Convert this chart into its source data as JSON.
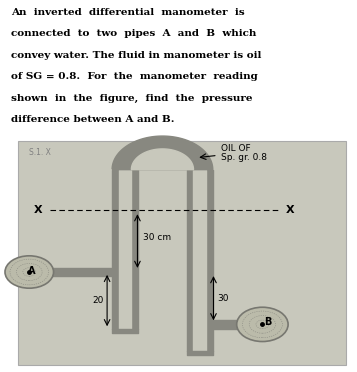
{
  "text_lines": [
    "An  inverted  differential  manometer  is",
    "connected  to  two  pipes  A  and  B  which",
    "convey water. The fluid in manometer is oil",
    "of SG = 0.8.  For  the  manometer  reading",
    "shown  in  the  figure,  find  the  pressure",
    "difference between A and B."
  ],
  "bg_color": "#ffffff",
  "diagram_bg": "#c8c8bc",
  "pipe_color": "#888880",
  "pipe_inner": "#c8c8bc",
  "label_A": "A",
  "label_B": "B",
  "oil_label_line1": "OIL OF",
  "oil_label_line2": "Sp. gr. 0.8",
  "dim_30cm": "30 cm",
  "dim_20": "20",
  "dim_30": "30",
  "x_label": "X",
  "si_x_label": "S.1. X"
}
